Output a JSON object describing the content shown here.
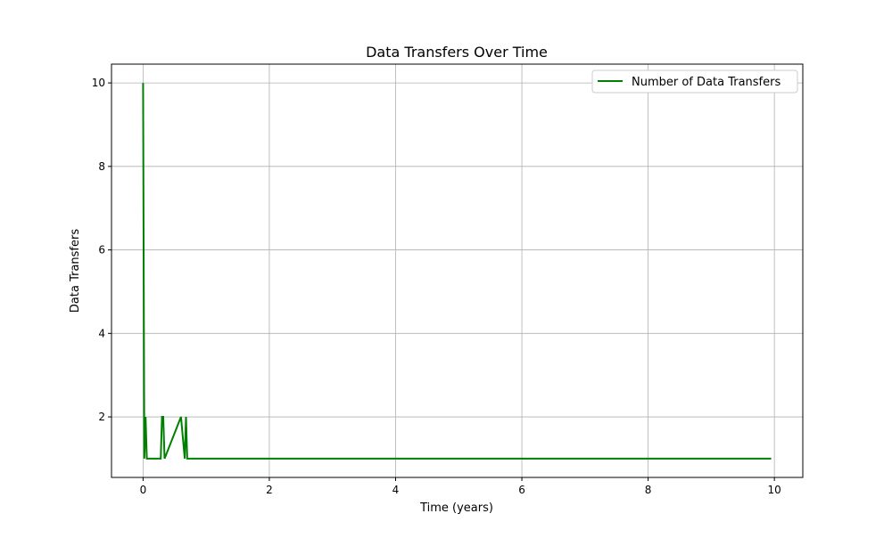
{
  "chart_data": {
    "type": "line",
    "title": "Data Transfers Over Time",
    "xlabel": "Time (years)",
    "ylabel": "Data Transfers",
    "xlim": [
      -0.5,
      10.45
    ],
    "ylim": [
      0.55,
      10.45
    ],
    "xticks": [
      0,
      2,
      4,
      6,
      8,
      10
    ],
    "yticks": [
      2,
      4,
      6,
      8,
      10
    ],
    "grid": true,
    "legend_position": "top-right",
    "series": [
      {
        "name": "Number of Data Transfers",
        "color": "#008000",
        "x": [
          0,
          0.02,
          0.04,
          0.06,
          0.28,
          0.3,
          0.32,
          0.34,
          0.6,
          0.66,
          0.68,
          0.7,
          0.72,
          1,
          2,
          4,
          6,
          8,
          9.95
        ],
        "y": [
          10,
          1,
          2,
          1,
          1,
          2,
          2,
          1,
          2,
          1,
          2,
          1,
          1,
          1,
          1,
          1,
          1,
          1,
          1
        ]
      }
    ]
  }
}
